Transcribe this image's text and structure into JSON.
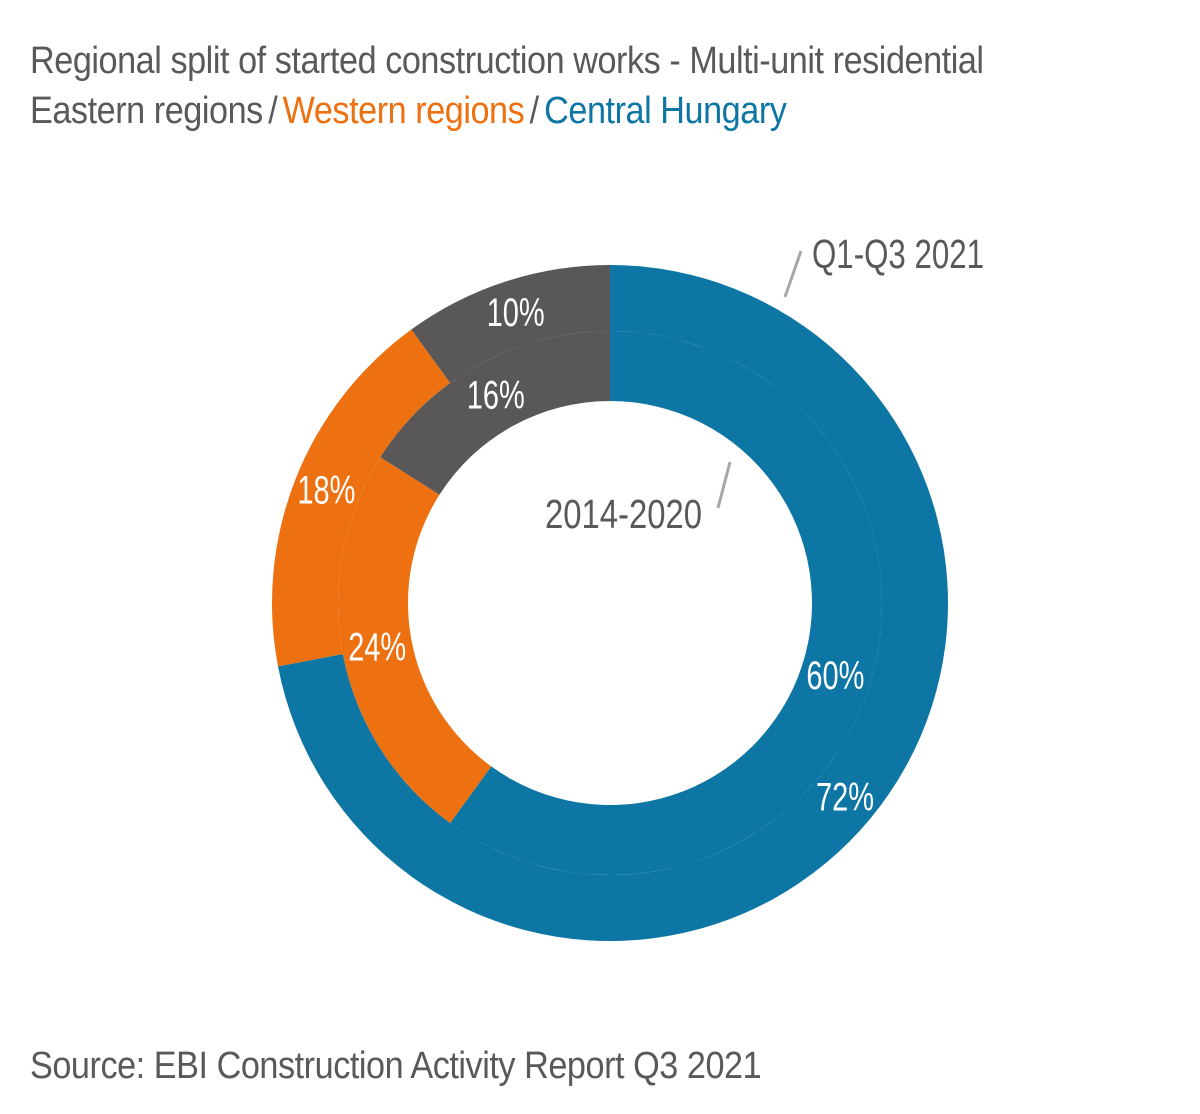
{
  "header": {
    "title": "Regional split of started construction works - Multi-unit residential",
    "separator": "/",
    "legend": [
      {
        "label": "Eastern regions",
        "color": "#58595b"
      },
      {
        "label": "Western regions",
        "color": "#ed7110"
      },
      {
        "label": "Central Hungary",
        "color": "#0e76a4"
      }
    ]
  },
  "chart_data": {
    "type": "donut",
    "title": "Regional split of started construction works - Multi-unit residential",
    "unit": "%",
    "direction": "clockwise",
    "start_angle_deg": 0,
    "segments": [
      {
        "name": "Central Hungary",
        "color": "#0e76a4"
      },
      {
        "name": "Western regions",
        "color": "#ed7110"
      },
      {
        "name": "Eastern regions",
        "color": "#595757"
      }
    ],
    "rings": [
      {
        "name": "Q1-Q3 2021",
        "position": "outer",
        "values": [
          72,
          18,
          10
        ]
      },
      {
        "name": "2014-2020",
        "position": "inner",
        "values": [
          60,
          24,
          16
        ]
      }
    ],
    "label_format": "{value}%",
    "label_color": "#ffffff",
    "annotation_color": "#58595b",
    "pointer_line_color": "#a7a8aa"
  },
  "footer": {
    "source": "Source: EBI Construction Activity Report Q3 2021"
  }
}
